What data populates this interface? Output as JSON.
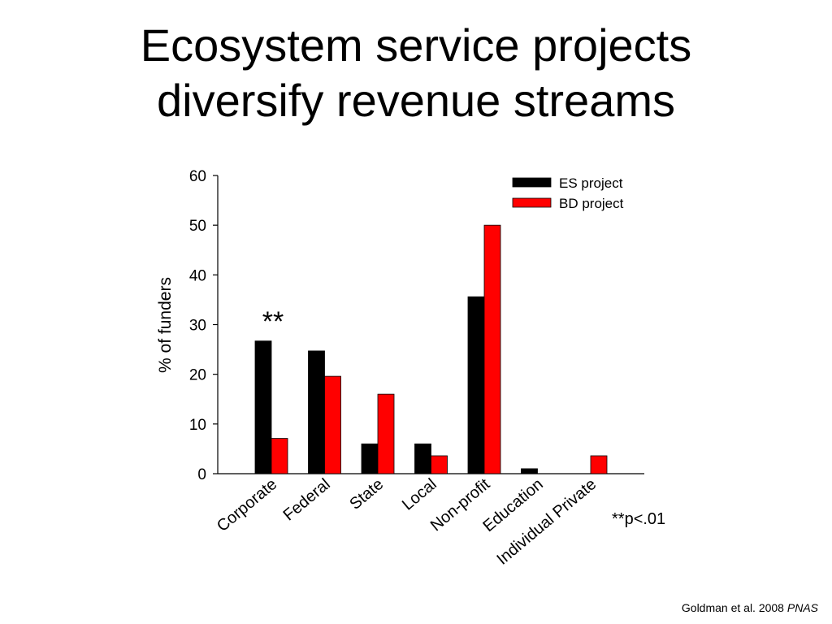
{
  "slide": {
    "title_line1": "Ecosystem service projects",
    "title_line2": "diversify revenue streams",
    "citation_text": "Goldman et al. 2008",
    "citation_journal": "PNAS"
  },
  "chart_data": {
    "type": "bar",
    "categories": [
      "Corporate",
      "Federal",
      "State",
      "Local",
      "Non-profit",
      "Education",
      "Individual Private"
    ],
    "series": [
      {
        "name": "ES project",
        "color": "#000000",
        "values": [
          26.7,
          24.7,
          6.0,
          6.0,
          35.6,
          1.0,
          0.0
        ]
      },
      {
        "name": "BD project",
        "color": "#ff0000",
        "values": [
          7.1,
          19.6,
          16.0,
          3.6,
          50.0,
          0.0,
          3.6
        ]
      }
    ],
    "title": "",
    "xlabel": "",
    "ylabel": "% of funders",
    "ylim": [
      0,
      60
    ],
    "yticks": [
      0,
      10,
      20,
      30,
      40,
      50,
      60
    ],
    "grid": false,
    "legend_position": "top-right",
    "annotations": [
      {
        "text": "**",
        "category": "Corporate"
      },
      {
        "text": "**p<.01",
        "position": "right-of-axis"
      }
    ]
  }
}
